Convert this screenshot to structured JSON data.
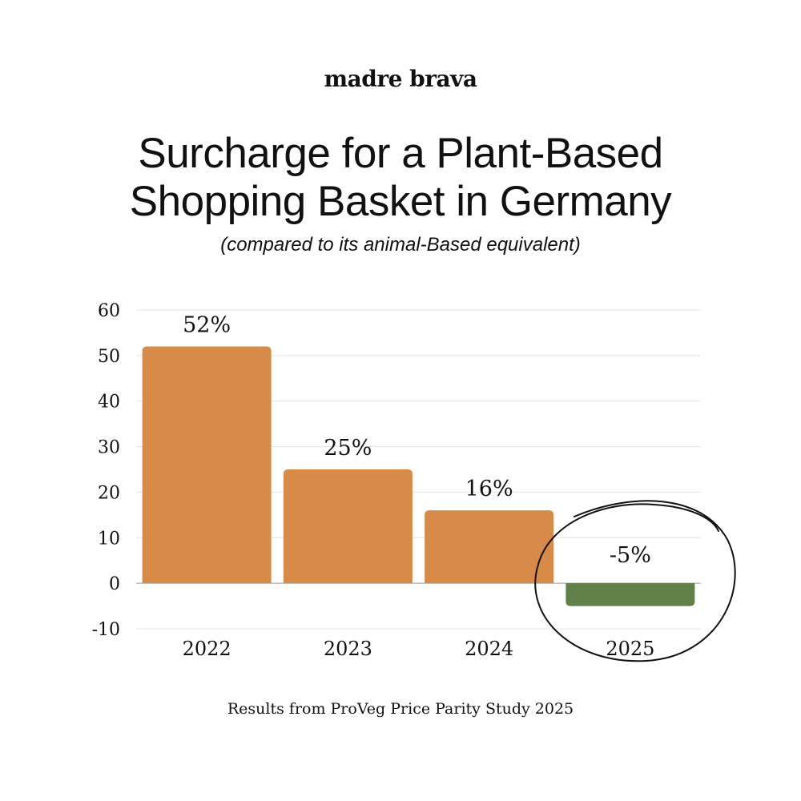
{
  "brand": {
    "logo_text": "madre brava"
  },
  "header": {
    "title_line1": "Surcharge for a Plant-Based",
    "title_line2": "Shopping Basket in Germany",
    "subtitle": "(compared to its animal-Based equivalent)"
  },
  "chart_data": {
    "type": "bar",
    "title": "Surcharge for a Plant-Based Shopping Basket in Germany",
    "subtitle": "(compared to its animal-Based equivalent)",
    "categories": [
      "2022",
      "2023",
      "2024",
      "2025"
    ],
    "values": [
      52,
      25,
      16,
      -5
    ],
    "value_labels": [
      "52%",
      "25%",
      "16%",
      "-5%"
    ],
    "ylim": [
      -10,
      60
    ],
    "yticks": [
      60,
      50,
      40,
      30,
      20,
      10,
      0,
      -10
    ],
    "xlabel": "",
    "ylabel": "",
    "grid": true,
    "colors": {
      "positive": "#D88B49",
      "negative": "#62814A",
      "grid": "#E3E3E3",
      "annotation": "#111111"
    },
    "annotation": {
      "type": "hand-drawn circle",
      "target": "2025"
    }
  },
  "footer": {
    "source": "Results from ProVeg Price Parity Study 2025"
  }
}
